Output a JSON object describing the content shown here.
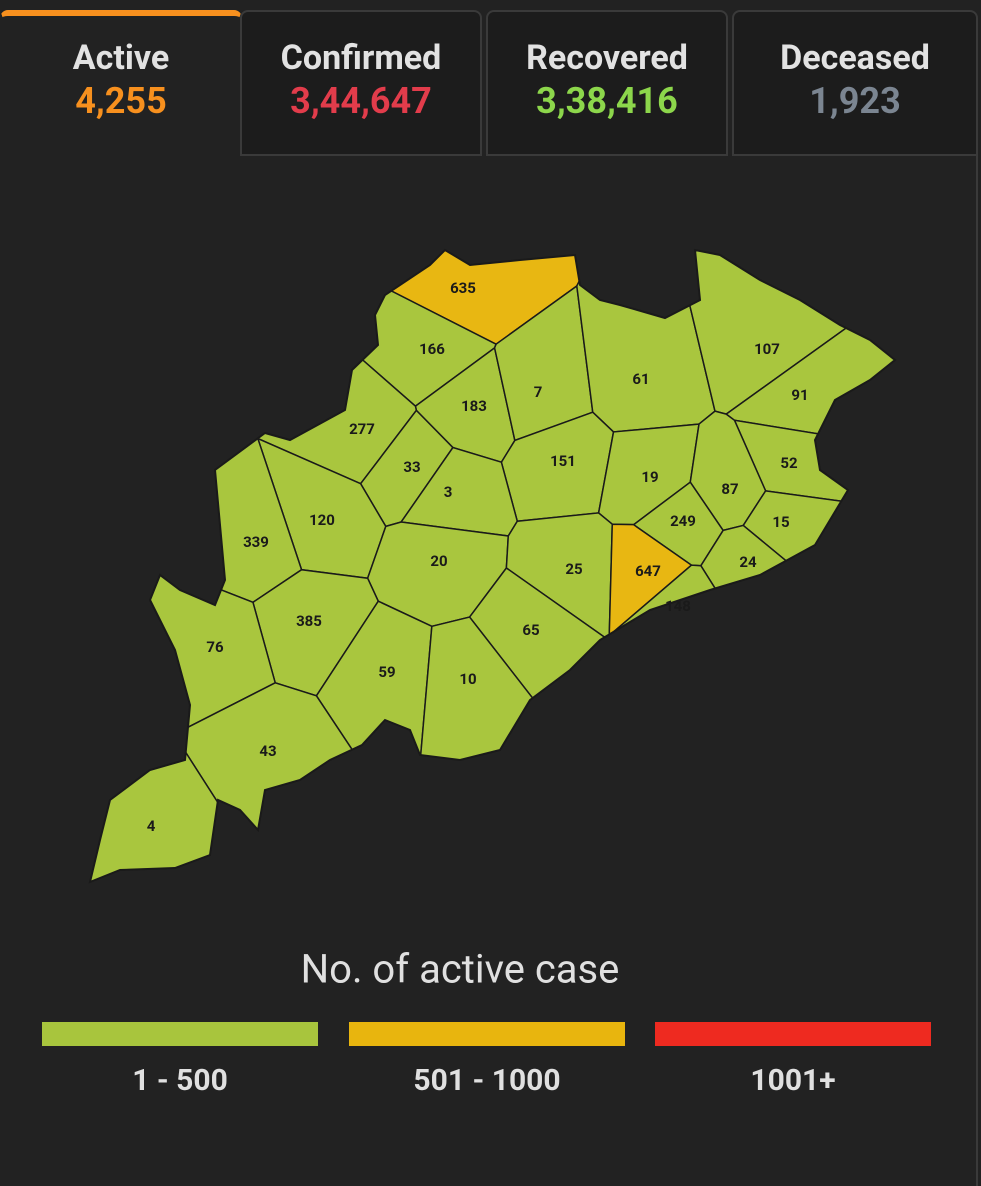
{
  "tabs": [
    {
      "label": "Active",
      "value": "4,255",
      "color": "#f7901e"
    },
    {
      "label": "Confirmed",
      "value": "3,44,647",
      "color": "#e23c4b"
    },
    {
      "label": "Recovered",
      "value": "3,38,416",
      "color": "#8cd64b"
    },
    {
      "label": "Deceased",
      "value": "1,923",
      "color": "#7b8591"
    }
  ],
  "map": {
    "districts": [
      {
        "label": 635,
        "color": "#e8b712"
      },
      {
        "label": 166,
        "color": "#a9c63e"
      },
      {
        "label": 183,
        "color": "#a9c63e"
      },
      {
        "label": 7,
        "color": "#a9c63e"
      },
      {
        "label": 61,
        "color": "#a9c63e"
      },
      {
        "label": 107,
        "color": "#a9c63e"
      },
      {
        "label": 91,
        "color": "#a9c63e"
      },
      {
        "label": 277,
        "color": "#a9c63e"
      },
      {
        "label": 33,
        "color": "#a9c63e"
      },
      {
        "label": 151,
        "color": "#a9c63e"
      },
      {
        "label": 19,
        "color": "#a9c63e"
      },
      {
        "label": 52,
        "color": "#a9c63e"
      },
      {
        "label": 87,
        "color": "#a9c63e"
      },
      {
        "label": 3,
        "color": "#a9c63e"
      },
      {
        "label": 249,
        "color": "#a9c63e"
      },
      {
        "label": 15,
        "color": "#a9c63e"
      },
      {
        "label": 120,
        "color": "#a9c63e"
      },
      {
        "label": 339,
        "color": "#a9c63e"
      },
      {
        "label": 20,
        "color": "#a9c63e"
      },
      {
        "label": 25,
        "color": "#a9c63e"
      },
      {
        "label": 647,
        "color": "#e8b712"
      },
      {
        "label": 24,
        "color": "#a9c63e"
      },
      {
        "label": 148,
        "color": "#a9c63e"
      },
      {
        "label": 385,
        "color": "#a9c63e"
      },
      {
        "label": 65,
        "color": "#a9c63e"
      },
      {
        "label": 76,
        "color": "#a9c63e"
      },
      {
        "label": 59,
        "color": "#a9c63e"
      },
      {
        "label": 10,
        "color": "#a9c63e"
      },
      {
        "label": 43,
        "color": "#a9c63e"
      },
      {
        "label": 4,
        "color": "#a9c63e"
      }
    ]
  },
  "legend": {
    "title": "No. of active case",
    "items": [
      {
        "label": "1 - 500",
        "color": "#a8c53d"
      },
      {
        "label": "501 - 1000",
        "color": "#e8b50e"
      },
      {
        "label": "1001+",
        "color": "#ee2a20"
      }
    ]
  }
}
